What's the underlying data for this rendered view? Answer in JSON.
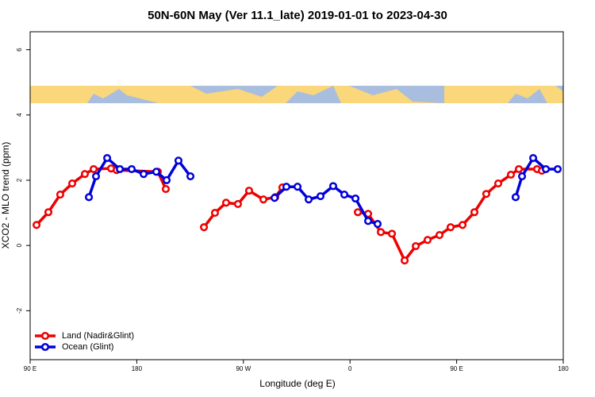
{
  "chart_data": {
    "type": "line",
    "title": "50N-60N May (Ver 11.1_late)   2019-01-01 to 2023-04-30",
    "xlabel": "Longitude (deg E)",
    "ylabel": "XCO2 - MLO trend (ppm)",
    "xlim": [
      90,
      540
    ],
    "ylim": [
      -3.5,
      6.55
    ],
    "xticks": [
      {
        "value": 90,
        "label": "90 E"
      },
      180,
      {
        "value": 270,
        "label": "90 W"
      },
      {
        "value": 360,
        "label": "0"
      },
      {
        "value": 450,
        "label": "90 E"
      },
      {
        "value": 540,
        "label": "180"
      }
    ],
    "yticks": [
      -2,
      0,
      2,
      4,
      6
    ],
    "legend": "bottom-left",
    "series": [
      {
        "name": "Land (Nadir&Glint)",
        "color": "#ee0000",
        "x": [
          95.4,
          105.4,
          115.4,
          125.5,
          136.2,
          143.6,
          158.3,
          163,
          197.8,
          204.5,
          null,
          236.7,
          246,
          255.4,
          265.4,
          274.8,
          286.9,
          296.9,
          302.9,
          null,
          366.6,
          375.3,
          386,
          395.4,
          406.1,
          415.5,
          425.5,
          435.5,
          444.9,
          455,
          465,
          475,
          485.1,
          495.8,
          502.5,
          517.9,
          521.9
        ],
        "values": [
          0.63,
          1.02,
          1.56,
          1.9,
          2.19,
          2.34,
          2.36,
          2.31,
          2.26,
          1.73,
          null,
          0.56,
          1.0,
          1.31,
          1.27,
          1.68,
          1.41,
          1.48,
          1.78,
          null,
          1.02,
          0.97,
          0.41,
          0.36,
          -0.46,
          -0.02,
          0.17,
          0.32,
          0.56,
          0.63,
          1.02,
          1.58,
          1.9,
          2.17,
          2.34,
          2.34,
          2.29
        ]
      },
      {
        "name": "Ocean (Glint)",
        "color": "#0000dd",
        "x": [
          139.6,
          145.6,
          155,
          165.7,
          175.7,
          185.8,
          196.5,
          205.2,
          215.2,
          225.3,
          null,
          296.3,
          306.3,
          315.7,
          325.1,
          335.1,
          345.8,
          355.2,
          364.6,
          375.3,
          383.3,
          null,
          499.8,
          505.2,
          514.6,
          525.3,
          535.3
        ],
        "values": [
          1.48,
          2.12,
          2.68,
          2.34,
          2.34,
          2.19,
          2.26,
          2.0,
          2.6,
          2.12,
          null,
          1.46,
          1.8,
          1.8,
          1.41,
          1.51,
          1.82,
          1.56,
          1.44,
          0.75,
          0.66,
          null,
          1.48,
          2.12,
          2.68,
          2.34,
          2.34
        ]
      }
    ]
  }
}
